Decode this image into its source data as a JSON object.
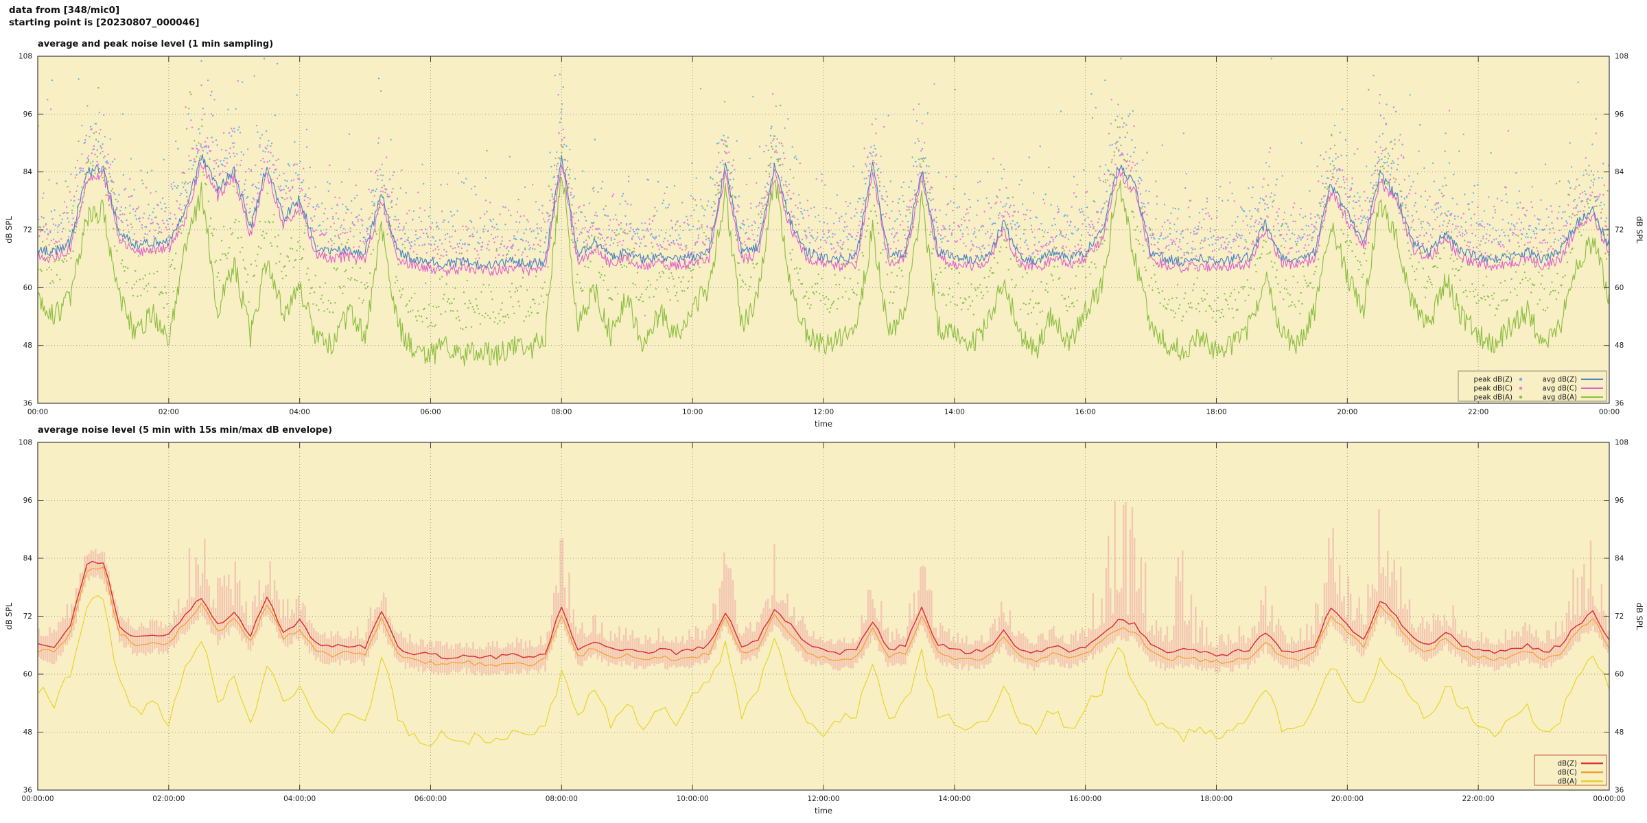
{
  "header": {
    "line1": "data from [348/mic0]",
    "line2": "starting point is [20230807_000046]"
  },
  "noise_seed": 20230807,
  "colors": {
    "plot_bg": "#f8efc5",
    "grid": "#9b9b8d",
    "axis": "#3c3c3c",
    "text": "#1c1c1c",
    "avg_dBZ": "#4d82c4",
    "avg_dBC": "#e263ce",
    "avg_dBA": "#8cbe3f",
    "peak_dBZ": "#6fb0e8",
    "peak_dBC": "#ec79da",
    "peak_dBA": "#8ac04e",
    "dBZ": "#d93030",
    "dBC": "#f59d25",
    "dBA": "#e6d41f",
    "envelope": "#f2aca4"
  },
  "chart_data": [
    {
      "type": "line+scatter",
      "title": "average and peak noise level (1 min sampling)",
      "xlabel": "time",
      "ylabel": "dB SPL",
      "ylabel_right": "dB SPL",
      "ylim": [
        36,
        108
      ],
      "yticks": [
        36,
        48,
        60,
        72,
        84,
        96,
        108
      ],
      "xticks_hours": [
        0,
        2,
        4,
        6,
        8,
        10,
        12,
        14,
        16,
        18,
        20,
        22,
        24
      ],
      "xtick_labels": [
        "00:00",
        "02:00",
        "04:00",
        "06:00",
        "08:00",
        "10:00",
        "12:00",
        "14:00",
        "16:00",
        "18:00",
        "20:00",
        "22:00",
        "00:00"
      ],
      "grid": true,
      "legend_position": "bottom-right",
      "legend_border": "#8b8b7c",
      "sample_interval_minutes": 15,
      "line_series": [
        {
          "name": "avg dB(Z)",
          "color_key": "avg_dBZ",
          "base": "avg dB(C)",
          "offset": 1.4,
          "jitter": 1.0
        },
        {
          "name": "avg dB(C)",
          "color_key": "avg_dBC",
          "jitter": 1.1,
          "values": [
            66.5,
            66,
            68,
            82.5,
            83.5,
            70,
            67.5,
            68,
            68,
            74,
            86,
            79,
            83,
            71,
            84,
            73,
            77,
            67,
            66,
            66.5,
            66,
            78,
            66,
            64.5,
            64,
            63.5,
            64,
            63.5,
            63.5,
            64,
            63.5,
            64,
            86,
            65,
            68,
            65,
            66,
            64.5,
            65,
            64.5,
            65,
            66,
            84,
            66,
            67,
            84,
            72,
            66,
            65,
            64.5,
            65,
            84,
            65,
            66,
            83,
            66,
            65,
            64.5,
            65,
            72,
            65,
            64,
            66,
            64.5,
            66,
            70,
            84,
            80,
            66,
            64.5,
            64,
            64.5,
            64,
            64.5,
            65,
            72,
            65,
            64.5,
            66,
            80,
            74,
            68,
            82,
            78,
            68,
            66,
            70,
            66,
            65,
            64.5,
            65,
            66,
            64.5,
            66,
            72,
            75,
            67
          ]
        },
        {
          "name": "avg dB(A)",
          "color_key": "avg_dBA",
          "jitter": 2.4,
          "values": [
            57,
            54,
            58,
            75,
            76,
            58,
            50,
            55,
            48,
            68,
            80,
            55,
            65,
            50,
            66,
            55,
            60,
            50,
            48,
            55,
            50,
            72,
            52,
            47,
            46,
            48,
            46,
            47,
            46,
            48,
            47,
            50,
            85,
            52,
            60,
            50,
            58,
            48,
            55,
            50,
            56,
            60,
            80,
            52,
            58,
            84,
            60,
            50,
            48,
            50,
            52,
            72,
            50,
            55,
            78,
            52,
            50,
            48,
            52,
            62,
            50,
            47,
            55,
            48,
            55,
            60,
            82,
            66,
            52,
            48,
            47,
            50,
            47,
            48,
            52,
            62,
            50,
            48,
            55,
            74,
            62,
            55,
            78,
            70,
            56,
            52,
            62,
            54,
            50,
            48,
            52,
            55,
            48,
            52,
            64,
            70,
            58
          ]
        }
      ],
      "scatter_series": [
        {
          "name": "peak dB(Z)",
          "color_key": "peak_dBZ",
          "base": "avg dB(C)",
          "base_offset": 4.2,
          "tail": 4.5,
          "outliers": [
            [
              0.15,
              99
            ],
            [
              0.22,
              103
            ],
            [
              1.3,
              96
            ],
            [
              2.3,
              96
            ],
            [
              2.5,
              107
            ],
            [
              2.6,
              103
            ],
            [
              2.7,
              99
            ],
            [
              3.0,
              93
            ],
            [
              3.4,
              91
            ],
            [
              5.2,
              90
            ],
            [
              7.9,
              104
            ],
            [
              8.0,
              97
            ],
            [
              10.4,
              90
            ],
            [
              11.2,
              93
            ],
            [
              12.8,
              95
            ],
            [
              13.4,
              90
            ],
            [
              16.3,
              103
            ],
            [
              16.5,
              98
            ],
            [
              17.5,
              92
            ],
            [
              19.3,
              90
            ],
            [
              20.4,
              104
            ],
            [
              20.6,
              98
            ],
            [
              21.5,
              92
            ],
            [
              23.4,
              90
            ],
            [
              23.8,
              95
            ]
          ]
        },
        {
          "name": "peak dB(C)",
          "color_key": "peak_dBC",
          "base": "avg dB(C)",
          "base_offset": 2.6,
          "tail": 3.8,
          "outliers": [
            [
              0.2,
              97
            ],
            [
              2.5,
              102
            ],
            [
              2.65,
              96
            ],
            [
              3.0,
              90
            ],
            [
              7.95,
              100
            ],
            [
              10.4,
              88
            ],
            [
              11.2,
              90
            ],
            [
              12.8,
              92
            ],
            [
              16.4,
              99
            ],
            [
              20.5,
              100
            ],
            [
              23.8,
              92
            ]
          ]
        },
        {
          "name": "peak dB(A)",
          "color_key": "peak_dBA",
          "base": "avg dB(A)",
          "base_offset": 6.0,
          "tail": 4.0,
          "outliers": [
            [
              2.55,
              86
            ],
            [
              8.0,
              88
            ],
            [
              11.2,
              87
            ],
            [
              13.5,
              82
            ],
            [
              16.4,
              86
            ],
            [
              20.5,
              84
            ]
          ]
        }
      ]
    },
    {
      "type": "line+envelope",
      "title": "average noise level (5 min with 15s min/max dB envelope)",
      "xlabel": "time",
      "ylabel": "dB SPL",
      "ylabel_right": "dB SPL",
      "ylim": [
        36,
        108
      ],
      "yticks": [
        36,
        48,
        60,
        72,
        84,
        96,
        108
      ],
      "xticks_hours": [
        0,
        2,
        4,
        6,
        8,
        10,
        12,
        14,
        16,
        18,
        20,
        22,
        24
      ],
      "xtick_labels": [
        "00:00:00",
        "02:00:00",
        "04:00:00",
        "06:00:00",
        "08:00:00",
        "10:00:00",
        "12:00:00",
        "14:00:00",
        "16:00:00",
        "18:00:00",
        "20:00:00",
        "22:00:00",
        "00:00:00"
      ],
      "grid": true,
      "legend_position": "bottom-right",
      "legend_border": "#c85a40",
      "sample_interval_minutes": 15,
      "line_series": [
        {
          "name": "dB(Z)",
          "color_key": "dBZ",
          "jitter": 0.5,
          "values": [
            66.5,
            66,
            70,
            83,
            83.5,
            70,
            67.5,
            68,
            68,
            72,
            76,
            70,
            73,
            68,
            76,
            69,
            71,
            66.5,
            65.5,
            66,
            65.5,
            73,
            65.5,
            64.5,
            64,
            63.5,
            64,
            63.5,
            63.5,
            64,
            63.5,
            64.5,
            74,
            65,
            67,
            65,
            65.5,
            64.5,
            65,
            64.5,
            65,
            66,
            73,
            66,
            67,
            73.5,
            70,
            66,
            65,
            64.5,
            65,
            71,
            65,
            66,
            73.5,
            66,
            65,
            64.5,
            65,
            69,
            65,
            64.5,
            66,
            64.5,
            66,
            68,
            71,
            70.5,
            66,
            64.5,
            65,
            64.5,
            64,
            64.5,
            65,
            68.5,
            65,
            64.5,
            66,
            74,
            70,
            67,
            75.5,
            72,
            67.5,
            66,
            69,
            66,
            65,
            64.5,
            65,
            66,
            64.5,
            66,
            70,
            73,
            67
          ]
        },
        {
          "name": "dB(C)",
          "color_key": "dBC",
          "base": "dB(Z)",
          "offset": -1.5,
          "jitter": 0.5
        },
        {
          "name": "dB(A)",
          "color_key": "dBA",
          "jitter": 1.3,
          "values": [
            57,
            54,
            60,
            75,
            75.5,
            58,
            52,
            54,
            50,
            62,
            68,
            54,
            60,
            50,
            62,
            54,
            57,
            50,
            48,
            53,
            50,
            64,
            51,
            47,
            46,
            48,
            46.5,
            47,
            46,
            48,
            47,
            50,
            60,
            51,
            57,
            50,
            55,
            48,
            53,
            50,
            55,
            58,
            66,
            52,
            56,
            68,
            57,
            50,
            48,
            50,
            52,
            62,
            50,
            54,
            64,
            52,
            50,
            48,
            51,
            58,
            50,
            47.5,
            53,
            48,
            53,
            57,
            66,
            58,
            51,
            48,
            47,
            49,
            47,
            48,
            51,
            57,
            49,
            48,
            53,
            62,
            57,
            53,
            64,
            60,
            54,
            51,
            58,
            53,
            50,
            48,
            51,
            53,
            48,
            51,
            60,
            63,
            57
          ]
        }
      ],
      "envelope": {
        "ref": "dB(Z)",
        "color_key": "envelope",
        "min_offset": -2.5,
        "max_values": [
          70,
          70,
          76,
          86,
          86,
          75,
          71,
          72,
          72,
          86,
          90,
          82,
          86,
          74,
          88,
          76,
          80,
          70,
          69,
          70,
          70,
          84,
          70,
          68,
          67,
          67,
          67,
          67,
          67,
          68,
          67,
          70,
          93,
          70,
          74,
          69,
          71,
          68,
          70,
          68,
          70,
          73,
          88,
          71,
          73,
          89,
          78,
          70,
          68,
          68,
          69,
          85,
          69,
          71,
          88,
          71,
          69,
          68,
          69,
          77,
          69,
          68,
          71,
          68,
          72,
          90,
          100,
          96,
          78,
          70,
          95,
          72,
          68,
          69,
          72,
          80,
          70,
          69,
          74,
          92,
          82,
          74,
          96,
          88,
          75,
          71,
          80,
          71,
          69,
          68,
          70,
          72,
          69,
          72,
          86,
          90,
          74
        ]
      }
    }
  ]
}
